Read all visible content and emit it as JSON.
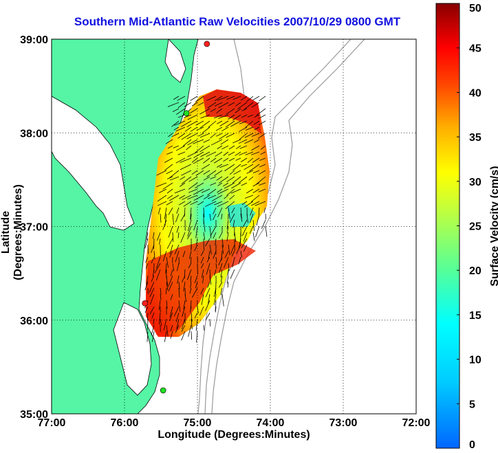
{
  "map": {
    "title": "Southern Mid-Atlantic Raw Velocities 2007/10/29 0800 GMT",
    "xlabel": "Longitude (Degrees:Minutes)",
    "ylabel": "Latitude (Degrees:Minutes)",
    "x_ticks": [
      "77:00",
      "76:00",
      "75:00",
      "74:00",
      "73:00",
      "72:00"
    ],
    "y_ticks": [
      "39:00",
      "38:00",
      "37:00",
      "36:00",
      "35:00"
    ],
    "lon_range": [
      -77,
      -72
    ],
    "lat_range": [
      35,
      39
    ],
    "land_color": "#55f5a5",
    "grid": "dotted"
  },
  "colorbar": {
    "label": "Surface Velocity (cm/s)",
    "ticks": [
      "50",
      "45",
      "40",
      "35",
      "30",
      "25",
      "20",
      "15",
      "10",
      "5",
      "0"
    ],
    "range": [
      0,
      50
    ],
    "colormap": "jet"
  },
  "chart_data": {
    "type": "heatmap",
    "description_units": "surface velocity in cm/s over longitude/latitude",
    "xlim": [
      -77,
      -72
    ],
    "ylim": [
      35,
      39
    ],
    "zlim": [
      0,
      50
    ],
    "stations": [
      {
        "lon": -74.87,
        "lat": 38.95,
        "color": "#ff2020"
      },
      {
        "lon": -75.15,
        "lat": 38.21,
        "color": "#20e020"
      },
      {
        "lon": -75.72,
        "lat": 36.18,
        "color": "#ff2020"
      },
      {
        "lon": -75.47,
        "lat": 35.25,
        "color": "#20e020"
      }
    ]
  }
}
